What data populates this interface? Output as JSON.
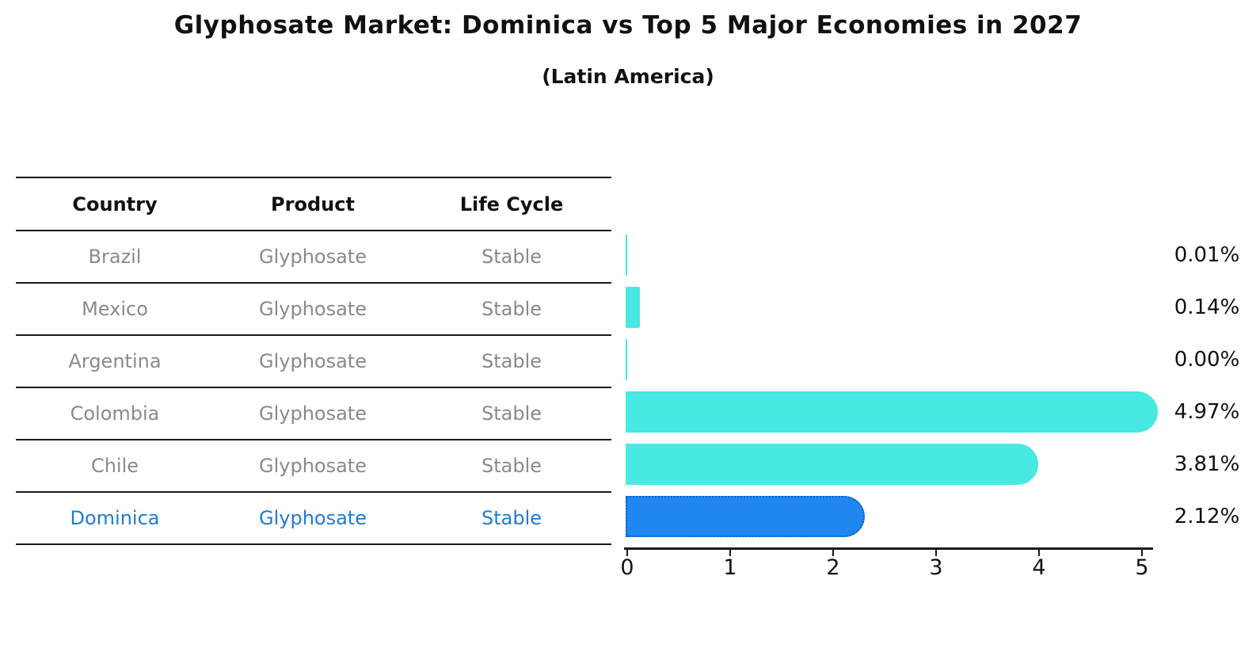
{
  "title": "Glyphosate Market: Dominica vs Top 5 Major Economies in 2027",
  "subtitle": "(Latin America)",
  "table": {
    "headers": [
      "Country",
      "Product",
      "Life Cycle"
    ],
    "rows": [
      {
        "country": "Brazil",
        "product": "Glyphosate",
        "life_cycle": "Stable",
        "highlight": false
      },
      {
        "country": "Mexico",
        "product": "Glyphosate",
        "life_cycle": "Stable",
        "highlight": false
      },
      {
        "country": "Argentina",
        "product": "Glyphosate",
        "life_cycle": "Stable",
        "highlight": false
      },
      {
        "country": "Colombia",
        "product": "Glyphosate",
        "life_cycle": "Stable",
        "highlight": false
      },
      {
        "country": "Chile",
        "product": "Glyphosate",
        "life_cycle": "Stable",
        "highlight": false
      },
      {
        "country": "Dominica",
        "product": "Glyphosate",
        "life_cycle": "Stable",
        "highlight": true
      }
    ]
  },
  "chart_data": {
    "type": "bar",
    "orientation": "horizontal",
    "title": "Glyphosate Market: Dominica vs Top 5 Major Economies in 2027",
    "subtitle": "(Latin America)",
    "categories": [
      "Brazil",
      "Mexico",
      "Argentina",
      "Colombia",
      "Chile",
      "Dominica"
    ],
    "values": [
      0.01,
      0.14,
      0.0,
      4.97,
      3.81,
      2.12
    ],
    "value_labels": [
      "0.01%",
      "0.14%",
      "0.00%",
      "4.97%",
      "3.81%",
      "2.12%"
    ],
    "x_ticks": [
      0,
      1,
      2,
      3,
      4,
      5
    ],
    "x_tick_labels": [
      "0",
      "1",
      "2",
      "3",
      "4",
      "5"
    ],
    "xlim": [
      0,
      5.15
    ],
    "grid": false,
    "legend": false,
    "bar_color": "#48e8e3",
    "highlight_index": 5,
    "highlight_bar_color": "#1e87f0",
    "highlight_border_color": "#1060c8"
  },
  "colors": {
    "title_text": "#111111",
    "table_line": "#1a1a1a",
    "row_text": "#8a8a8a",
    "highlight_text": "#1f7bd4",
    "bar_cyan": "#48e8e3",
    "bar_blue": "#1e87f0"
  }
}
